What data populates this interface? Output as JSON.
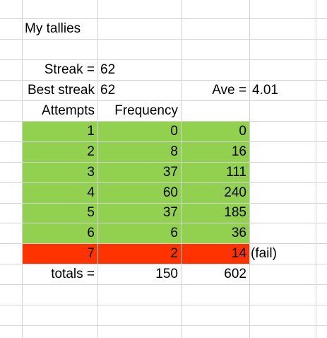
{
  "sheet": {
    "title": "My tallies",
    "streak_label": "Streak =",
    "streak_value": "62",
    "best_label": "Best streak",
    "best_value": "62",
    "ave_label": "Ave =",
    "ave_value": "4.01",
    "col_attempts": "Attempts",
    "col_frequency": "Frequency",
    "rows": [
      {
        "attempts": "1",
        "frequency": "0",
        "product": "0"
      },
      {
        "attempts": "2",
        "frequency": "8",
        "product": "16"
      },
      {
        "attempts": "3",
        "frequency": "37",
        "product": "111"
      },
      {
        "attempts": "4",
        "frequency": "60",
        "product": "240"
      },
      {
        "attempts": "5",
        "frequency": "37",
        "product": "185"
      },
      {
        "attempts": "6",
        "frequency": "6",
        "product": "36"
      },
      {
        "attempts": "7",
        "frequency": "2",
        "product": "14",
        "note": "(fail)"
      }
    ],
    "totals_label": "totals =",
    "totals_frequency": "150",
    "totals_product": "602"
  },
  "colors": {
    "success_fill": "#92d050",
    "fail_fill": "#ff3300",
    "gridline": "#d4d4d4"
  }
}
